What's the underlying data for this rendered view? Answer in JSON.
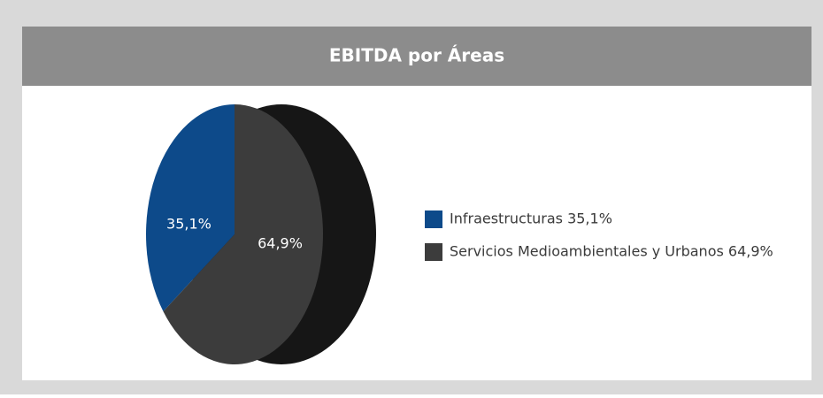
{
  "chart_data": {
    "type": "pie",
    "title": "EBITDA por Áreas",
    "categories": [
      "Infraestructuras 35,1%",
      "Servicios Medioambientales y Urbanos 64,9%"
    ],
    "values": [
      35.1,
      64.9
    ],
    "value_labels": [
      "35,1%",
      "64,9%"
    ],
    "colors": [
      "#0d4a8a",
      "#3c3c3c"
    ]
  }
}
